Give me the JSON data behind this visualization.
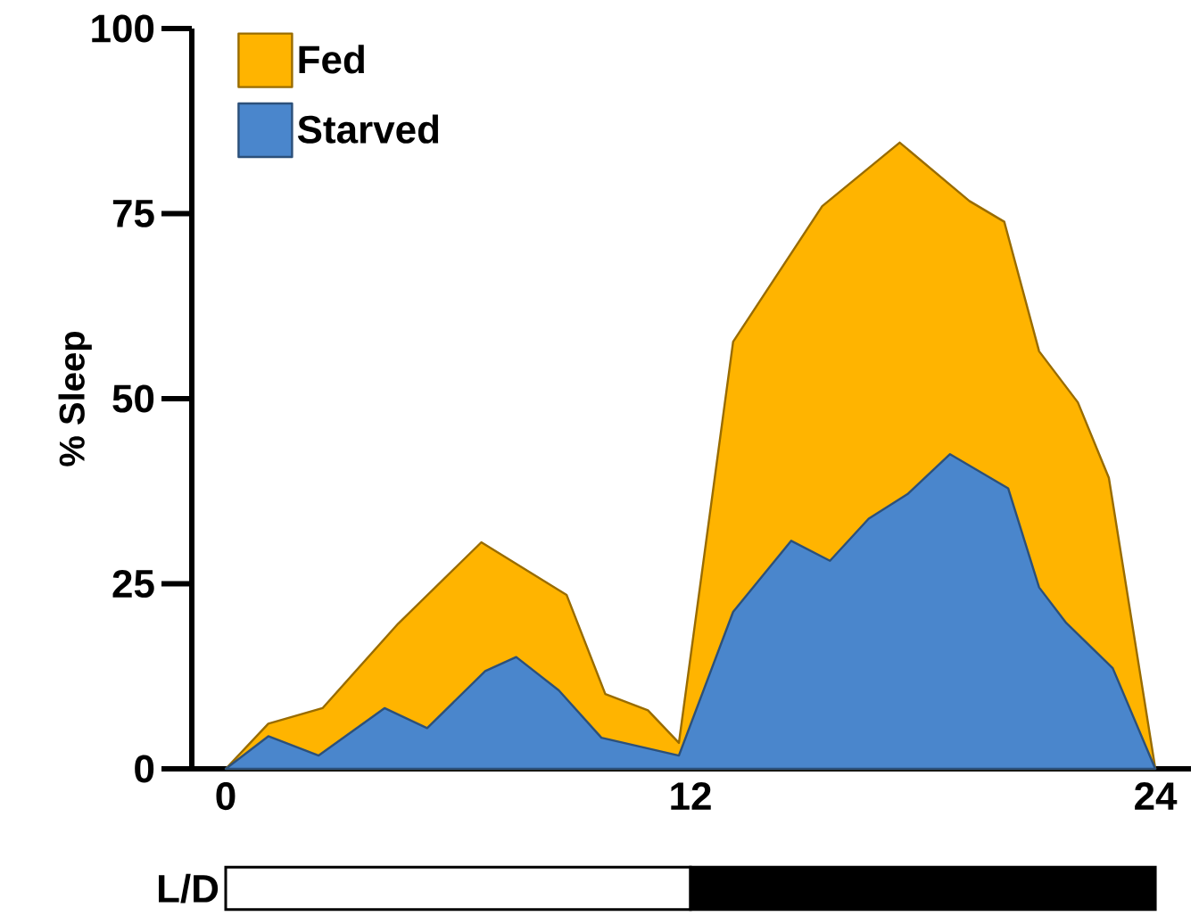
{
  "chart_data": {
    "type": "area",
    "ylabel": "% Sleep",
    "xlim": [
      -0.875,
      24.92
    ],
    "ylim": [
      0,
      100
    ],
    "xticks": [
      0,
      12,
      24
    ],
    "yticks": [
      0,
      25,
      50,
      75,
      100
    ],
    "series": [
      {
        "name": "Fed",
        "color": "#ffb400",
        "x": [
          0,
          1.1,
          2.5,
          4.45,
          6.6,
          8.8,
          9.8,
          10.9,
          11.7,
          13.1,
          15.4,
          17.4,
          19.2,
          20.1,
          21.0,
          22.0,
          22.8,
          24
        ],
        "values": [
          0,
          6.1,
          8.2,
          19.6,
          30.6,
          23.5,
          10.1,
          7.9,
          3.5,
          57.7,
          76.0,
          84.6,
          76.7,
          73.9,
          56.4,
          49.5,
          39.3,
          0
        ]
      },
      {
        "name": "Starved",
        "color": "#4a86cc",
        "x": [
          0,
          1.1,
          2.4,
          4.1,
          5.2,
          6.7,
          7.5,
          8.6,
          9.7,
          11.7,
          13.1,
          14.6,
          15.6,
          16.6,
          17.6,
          18.7,
          20.2,
          21.0,
          21.7,
          22.9,
          24
        ],
        "values": [
          0,
          4.4,
          1.8,
          8.2,
          5.5,
          13.2,
          15.1,
          10.6,
          4.2,
          1.8,
          21.2,
          30.8,
          28.1,
          33.8,
          37.1,
          42.5,
          37.9,
          24.5,
          19.7,
          13.6,
          0
        ]
      }
    ],
    "annotations": [
      "L/D"
    ],
    "legend": "top left",
    "grid": false
  }
}
